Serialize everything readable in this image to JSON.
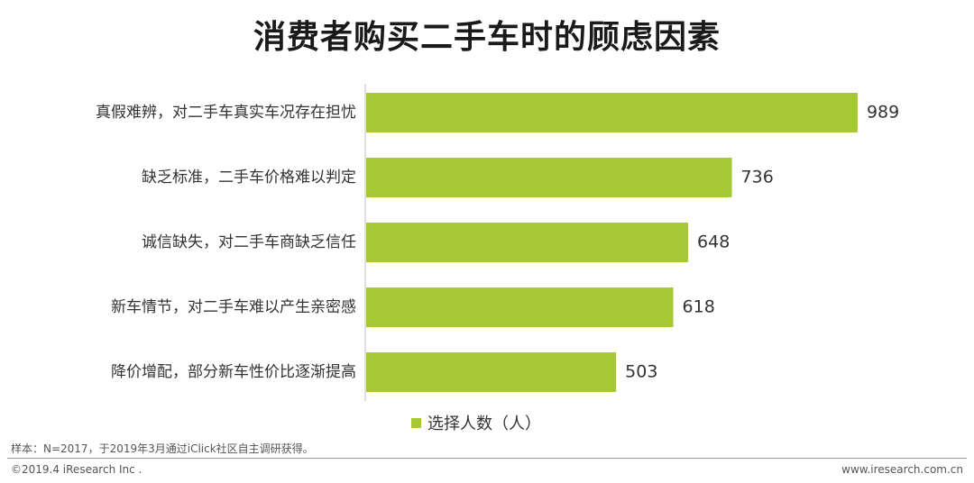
{
  "title": "消费者购买二手车时的顾虑因素",
  "legend": {
    "label": "选择人数（人）"
  },
  "note": "样本：N=2017，于2019年3月通过iClick社区自主调研获得。",
  "footer": {
    "copyright": "©2019.4 iResearch Inc .",
    "url": "www.iresearch.com.cn"
  },
  "colors": {
    "bar": "#a5c935",
    "axis": "#bfbfbf"
  },
  "chart_data": {
    "type": "bar",
    "orientation": "horizontal",
    "title": "消费者购买二手车时的顾虑因素",
    "categories": [
      "真假难辨，对二手车真实车况存在担忧",
      "缺乏标准，二手车价格难以判定",
      "诚信缺失，对二手车商缺乏信任",
      "新车情节，对二手车难以产生亲密感",
      "降价增配，部分新车性价比逐渐提高"
    ],
    "series": [
      {
        "name": "选择人数（人）",
        "values": [
          989,
          736,
          648,
          618,
          503
        ]
      }
    ],
    "xlim": [
      0,
      1000
    ],
    "grid": false,
    "legend_position": "bottom"
  }
}
